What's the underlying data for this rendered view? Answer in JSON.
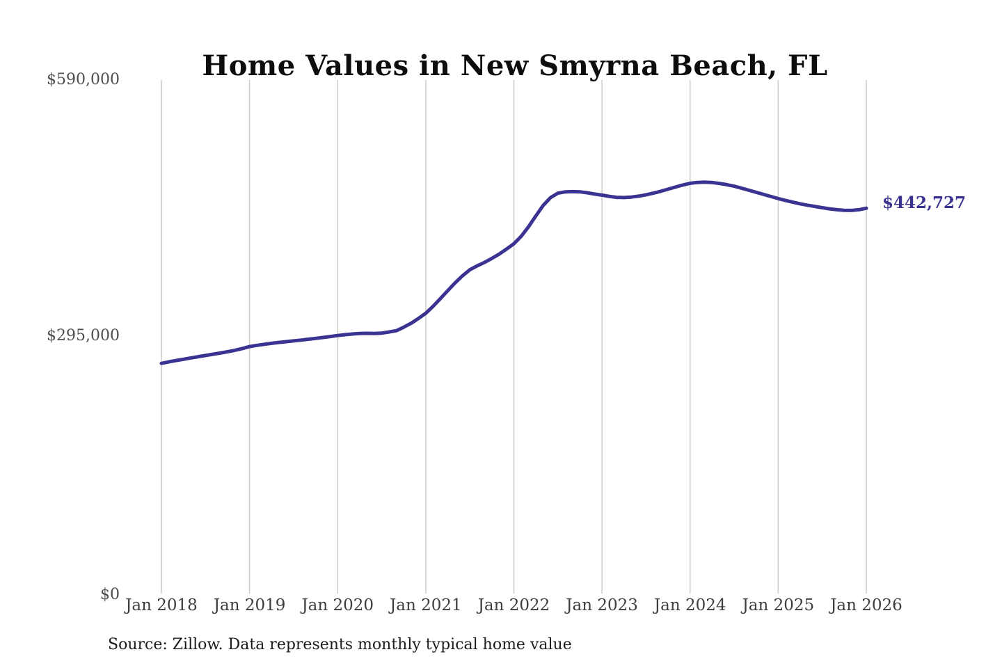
{
  "title": "Home Values in New Smyrna Beach, FL",
  "source_note": "Source: Zillow. Data represents monthly typical home value",
  "chart_data": {
    "type": "line",
    "title": "Home Values in New Smyrna Beach, FL",
    "series_name": "Monthly typical home value",
    "unit": "USD",
    "x_start": "Jan 2018",
    "x_end": "Jan 2026",
    "x_interval": "1 month",
    "x_tick_labels": [
      "Jan 2018",
      "Jan 2019",
      "Jan 2020",
      "Jan 2021",
      "Jan 2022",
      "Jan 2023",
      "Jan 2024",
      "Jan 2025",
      "Jan 2026"
    ],
    "y_tick_labels": [
      "$590,000",
      "$295,000",
      "$0"
    ],
    "y_ticks": [
      590000,
      295000,
      0
    ],
    "ylim": [
      0,
      590000
    ],
    "grid": "vertical-only",
    "legend": "none",
    "end_label": "$442,727",
    "end_value": 442727,
    "line_color": "#3a3391",
    "grid_color": "#cccccc",
    "values": [
      264500,
      266100,
      267700,
      269200,
      270700,
      272100,
      273500,
      274900,
      276300,
      277800,
      279500,
      281500,
      283700,
      285200,
      286400,
      287500,
      288500,
      289400,
      290300,
      291200,
      292200,
      293200,
      294200,
      295300,
      296400,
      297400,
      298200,
      298800,
      299000,
      298800,
      299200,
      300500,
      302000,
      306000,
      310500,
      316000,
      322000,
      330000,
      339000,
      348000,
      357000,
      365000,
      372000,
      376500,
      380500,
      385000,
      390000,
      395800,
      401900,
      410500,
      421500,
      434000,
      446000,
      455000,
      460000,
      461500,
      461800,
      461500,
      460500,
      459000,
      457800,
      456300,
      455200,
      455000,
      455500,
      456600,
      458200,
      460000,
      462200,
      464600,
      467000,
      469400,
      471400,
      472300,
      472600,
      472200,
      471200,
      469800,
      468000,
      465800,
      463400,
      461000,
      458600,
      456200,
      453800,
      451600,
      449600,
      447800,
      446200,
      444700,
      443300,
      442000,
      441000,
      440300,
      440200,
      441000,
      442727
    ]
  }
}
